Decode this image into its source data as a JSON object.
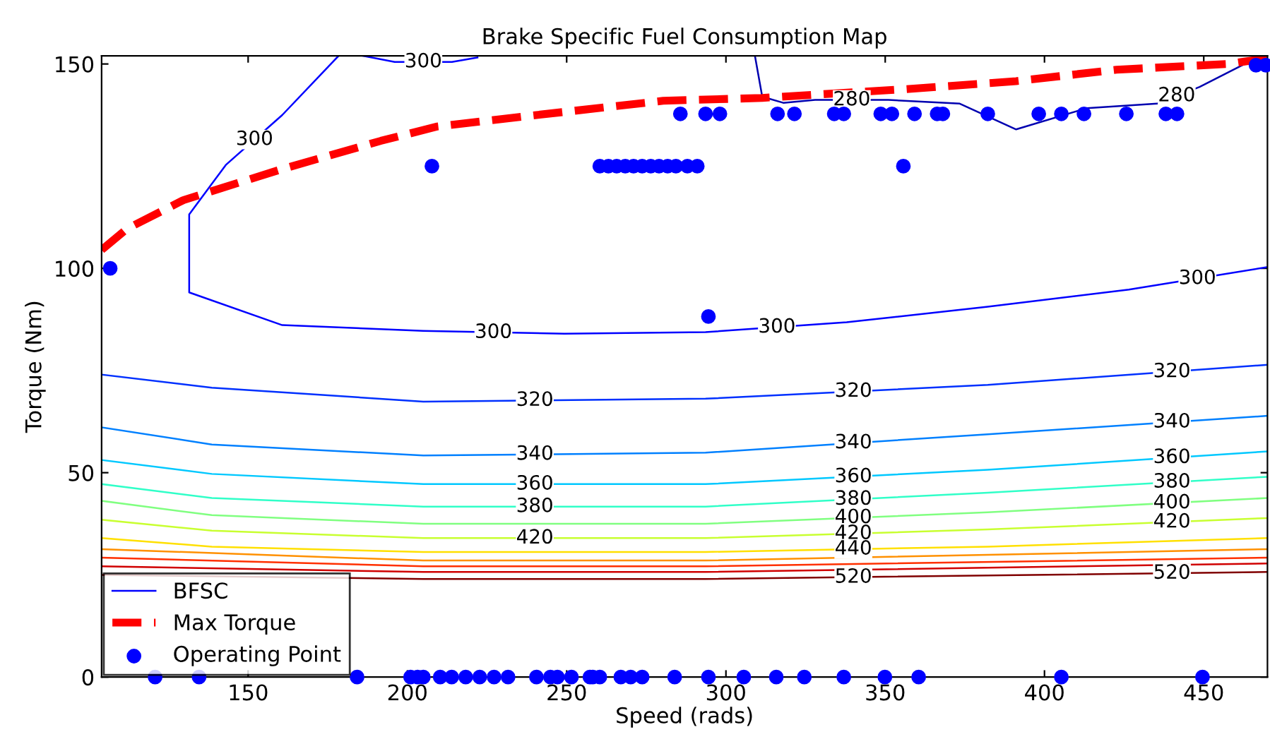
{
  "chart_data": {
    "type": "line",
    "title": "Brake Specific Fuel Consumption Map",
    "xlabel": "Speed (rads)",
    "ylabel": "Torque (Nm)",
    "xlim": [
      104,
      470
    ],
    "xticks": [
      150,
      200,
      250,
      300,
      350,
      400,
      450
    ],
    "ylim": [
      0,
      152
    ],
    "yticks": [
      0,
      50,
      100,
      150
    ],
    "grid": false,
    "legend": "bottom left",
    "series": [
      {
        "name": "BFSC",
        "color": "#0000ff",
        "x": [
          178.4,
          160.7,
          143,
          131.5,
          131.5,
          160.7,
          205,
          249.3,
          293.6,
          337.9,
          382.2,
          426.5,
          470
        ],
        "values": [
          152,
          137.5,
          125.3,
          113.2,
          94.1,
          86.1,
          84.7,
          84,
          84.4,
          86.8,
          90.6,
          94.8,
          100.3
        ]
      },
      {
        "color": "#0000ff",
        "x": [
          186,
          196,
          214,
          222
        ],
        "values": [
          152,
          150.5,
          150.5,
          151.6
        ]
      },
      {
        "color": "#0000b0",
        "x": [
          309.1,
          311.4,
          318,
          328,
          351,
          373.4,
          391.1,
          413.3,
          435.4,
          448.7,
          466.4
        ],
        "values": [
          152,
          142,
          140.5,
          141.2,
          141.2,
          140.3,
          134,
          139.2,
          140.3,
          144.4,
          151.4
        ]
      },
      {
        "color": "#0030ff",
        "x": [
          104,
          138.6,
          205,
          293.6,
          382.2,
          470
        ],
        "values": [
          74,
          70.8,
          67.4,
          68.1,
          71.5,
          76.4
        ]
      },
      {
        "color": "#0080ff",
        "x": [
          104,
          138.6,
          205,
          293.6,
          382.2,
          470
        ],
        "values": [
          61.1,
          56.9,
          54.2,
          54.9,
          59.4,
          63.9
        ]
      },
      {
        "color": "#00c8ff",
        "x": [
          104,
          138.6,
          205,
          293.6,
          382.2,
          470
        ],
        "values": [
          53.1,
          49.7,
          47.2,
          47.2,
          50.7,
          55.2
        ]
      },
      {
        "color": "#30ffc8",
        "x": [
          104,
          138.6,
          205,
          293.6,
          382.2,
          470
        ],
        "values": [
          47.2,
          43.8,
          41.7,
          41.7,
          45.1,
          49
        ]
      },
      {
        "color": "#80ff80",
        "x": [
          104,
          138.6,
          205,
          293.6,
          382.2,
          470
        ],
        "values": [
          43.1,
          39.6,
          37.5,
          37.5,
          40.3,
          43.8
        ]
      },
      {
        "color": "#c8ff30",
        "x": [
          104,
          138.6,
          205,
          293.6,
          382.2,
          470
        ],
        "values": [
          38.5,
          35.8,
          34,
          34,
          36.1,
          38.9
        ]
      },
      {
        "color": "#ffe000",
        "x": [
          104,
          138.6,
          205,
          293.6,
          382.2,
          470
        ],
        "values": [
          34,
          31.9,
          30.6,
          30.6,
          31.9,
          34
        ]
      },
      {
        "color": "#ff9000",
        "x": [
          104,
          205,
          293.6,
          470
        ],
        "values": [
          31.3,
          28.5,
          28.5,
          31.3
        ]
      },
      {
        "color": "#ff3000",
        "x": [
          104,
          205,
          293.6,
          470
        ],
        "values": [
          29.2,
          27.1,
          27.1,
          29.2
        ]
      },
      {
        "color": "#d00000",
        "x": [
          104,
          205,
          293.6,
          470
        ],
        "values": [
          27.1,
          25.7,
          25.7,
          27.8
        ]
      },
      {
        "color": "#800000",
        "x": [
          104,
          205,
          293.6,
          470
        ],
        "values": [
          25,
          24,
          24,
          25.7
        ]
      },
      {
        "name": "Max Torque",
        "color": "#ff0000",
        "line_style": "dashed",
        "x": [
          104,
          112,
          129.7,
          160.7,
          191.7,
          209.4,
          240.5,
          280.3,
          311.4,
          355.7,
          391.1,
          422.6,
          457.6,
          470
        ],
        "values": [
          104.5,
          109.7,
          116.7,
          124.3,
          131.2,
          134.7,
          137.5,
          141,
          141.7,
          143.8,
          145.8,
          148.6,
          150,
          151.4
        ]
      },
      {
        "name": "Operating Point",
        "type": "scatter",
        "marker": "circle",
        "color": "#0000ff",
        "x": [
          120.8,
          134.6,
          184.2,
          201,
          203.2,
          205,
          210.3,
          213.9,
          218.3,
          222.7,
          227.2,
          231.6,
          240.5,
          244.9,
          247.1,
          251.5,
          257.3,
          258.2,
          260.4,
          267,
          270.1,
          273.7,
          283.9,
          294.5,
          305.6,
          315.8,
          324.6,
          337,
          349.9,
          360.5,
          405.3,
          449.6,
          207.7,
          355.7,
          260.4,
          263.1,
          265.7,
          268.4,
          271,
          273.7,
          276.4,
          279,
          281.7,
          284.3,
          287.9,
          291,
          285.7,
          293.6,
          298.1,
          316.2,
          321.5,
          334,
          337,
          348.6,
          352.1,
          359.2,
          366.3,
          368.1,
          382.2,
          398.2,
          405.3,
          412.4,
          425.7,
          438.1,
          441.6,
          106.7,
          294.5,
          466.4,
          469.5
        ],
        "values": [
          0,
          0,
          0,
          0,
          0,
          0,
          0,
          0,
          0,
          0,
          0,
          0,
          0,
          0,
          0,
          0,
          0,
          0,
          0,
          0,
          0,
          0,
          0,
          0,
          0,
          0,
          0,
          0,
          0,
          0,
          0,
          0,
          125,
          125,
          125,
          125,
          125,
          125,
          125,
          125,
          125,
          125,
          125,
          125,
          125,
          125,
          137.8,
          137.8,
          137.8,
          137.8,
          137.8,
          137.8,
          137.8,
          137.8,
          137.8,
          137.8,
          137.8,
          137.8,
          137.8,
          137.8,
          137.8,
          137.8,
          137.8,
          137.8,
          137.8,
          100,
          88.2,
          149.7,
          149.7
        ]
      }
    ],
    "annotations": [
      {
        "text": "300",
        "x": 152,
        "y": 131.5
      },
      {
        "text": "300",
        "x": 227,
        "y": 84.3
      },
      {
        "text": "300",
        "x": 316,
        "y": 85.6
      },
      {
        "text": "300",
        "x": 448,
        "y": 97.5
      },
      {
        "text": "300",
        "x": 205,
        "y": 150.5
      },
      {
        "text": "280",
        "x": 339.5,
        "y": 141.2
      },
      {
        "text": "280",
        "x": 441.5,
        "y": 142.2
      },
      {
        "text": "320",
        "x": 240,
        "y": 67.7
      },
      {
        "text": "320",
        "x": 340,
        "y": 69.9
      },
      {
        "text": "320",
        "x": 440,
        "y": 74.7
      },
      {
        "text": "340",
        "x": 240,
        "y": 54.5
      },
      {
        "text": "340",
        "x": 340,
        "y": 57.3
      },
      {
        "text": "340",
        "x": 440,
        "y": 62.4
      },
      {
        "text": "360",
        "x": 240,
        "y": 47.2
      },
      {
        "text": "360",
        "x": 340,
        "y": 49
      },
      {
        "text": "360",
        "x": 440,
        "y": 53.7
      },
      {
        "text": "380",
        "x": 240,
        "y": 41.7
      },
      {
        "text": "380",
        "x": 340,
        "y": 43.5
      },
      {
        "text": "380",
        "x": 440,
        "y": 47.7
      },
      {
        "text": "400",
        "x": 340,
        "y": 39
      },
      {
        "text": "400",
        "x": 440,
        "y": 42.6
      },
      {
        "text": "420",
        "x": 240,
        "y": 34
      },
      {
        "text": "420",
        "x": 340,
        "y": 35.1
      },
      {
        "text": "420",
        "x": 440,
        "y": 37.9
      },
      {
        "text": "440",
        "x": 340,
        "y": 31.3
      },
      {
        "text": "520",
        "x": 340,
        "y": 24.4
      },
      {
        "text": "520",
        "x": 440,
        "y": 25.4
      }
    ]
  }
}
